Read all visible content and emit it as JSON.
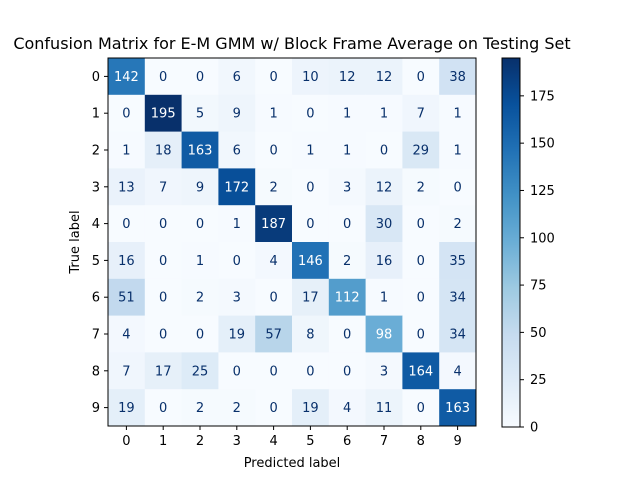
{
  "chart_data": {
    "type": "heatmap",
    "title": "Confusion Matrix for E-M GMM w/ Block Frame Average on Testing Set",
    "xlabel": "Predicted label",
    "ylabel": "True label",
    "x_ticks": [
      "0",
      "1",
      "2",
      "3",
      "4",
      "5",
      "6",
      "7",
      "8",
      "9"
    ],
    "y_ticks": [
      "0",
      "1",
      "2",
      "3",
      "4",
      "5",
      "6",
      "7",
      "8",
      "9"
    ],
    "matrix": [
      [
        142,
        0,
        0,
        6,
        0,
        10,
        12,
        12,
        0,
        38
      ],
      [
        0,
        195,
        5,
        9,
        1,
        0,
        1,
        1,
        7,
        1
      ],
      [
        1,
        18,
        163,
        6,
        0,
        1,
        1,
        0,
        29,
        1
      ],
      [
        13,
        7,
        9,
        172,
        2,
        0,
        3,
        12,
        2,
        0
      ],
      [
        0,
        0,
        0,
        1,
        187,
        0,
        0,
        30,
        0,
        2
      ],
      [
        16,
        0,
        1,
        0,
        4,
        146,
        2,
        16,
        0,
        35
      ],
      [
        51,
        0,
        2,
        3,
        0,
        17,
        112,
        1,
        0,
        34
      ],
      [
        4,
        0,
        0,
        19,
        57,
        8,
        0,
        98,
        0,
        34
      ],
      [
        7,
        17,
        25,
        0,
        0,
        0,
        0,
        3,
        164,
        4
      ],
      [
        19,
        0,
        2,
        2,
        0,
        19,
        4,
        11,
        0,
        163
      ]
    ],
    "colormap": "Blues",
    "colorbar": {
      "range": [
        0,
        195
      ],
      "ticks": [
        0,
        25,
        50,
        75,
        100,
        125,
        150,
        175
      ]
    }
  }
}
